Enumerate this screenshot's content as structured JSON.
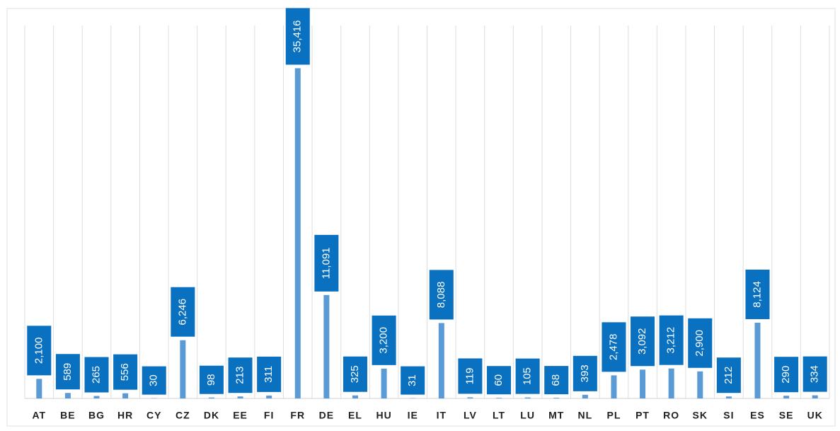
{
  "chart_data": {
    "type": "bar",
    "categories": [
      "AT",
      "BE",
      "BG",
      "HR",
      "CY",
      "CZ",
      "DK",
      "EE",
      "FI",
      "FR",
      "DE",
      "EL",
      "HU",
      "IE",
      "IT",
      "LV",
      "LT",
      "LU",
      "MT",
      "NL",
      "PL",
      "PT",
      "RO",
      "SK",
      "SI",
      "ES",
      "SE",
      "UK"
    ],
    "values": [
      2100,
      589,
      265,
      556,
      30,
      6246,
      98,
      213,
      311,
      35416,
      11091,
      325,
      3200,
      31,
      8088,
      119,
      60,
      105,
      68,
      393,
      2478,
      3092,
      3212,
      2900,
      212,
      8124,
      290,
      334
    ],
    "value_labels": [
      "2,100",
      "589",
      "265",
      "556",
      "30",
      "6,246",
      "98",
      "213",
      "311",
      "35,416",
      "11,091",
      "325",
      "3,200",
      "31",
      "8,088",
      "119",
      "60",
      "105",
      "68",
      "393",
      "2,478",
      "3,092",
      "3,212",
      "2,900",
      "212",
      "8,124",
      "290",
      "334"
    ],
    "color": "#5b9bd5",
    "label_color": "#0a70c0",
    "ylim": [
      0,
      40000
    ]
  }
}
